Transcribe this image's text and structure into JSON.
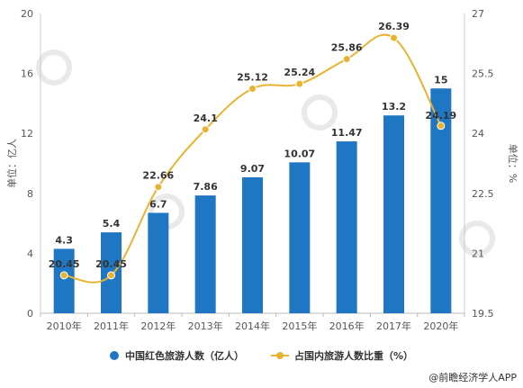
{
  "chart_data": {
    "type": "bar",
    "categories": [
      "2010年",
      "2011年",
      "2012年",
      "2013年",
      "2014年",
      "2015年",
      "2016年",
      "2017年",
      "2020年"
    ],
    "series": [
      {
        "name": "中国红色旅游人数（亿人）",
        "type": "bar",
        "axis": "left",
        "color": "#1f77c4",
        "values": [
          4.3,
          5.4,
          6.7,
          7.86,
          9.07,
          10.07,
          11.47,
          13.2,
          15
        ]
      },
      {
        "name": "占国内旅游人数比重（%）",
        "type": "line",
        "axis": "right",
        "color": "#e8b330",
        "values": [
          20.45,
          20.45,
          22.66,
          24.1,
          25.12,
          25.24,
          25.86,
          26.39,
          24.19
        ]
      }
    ],
    "ylabel": "单位：亿人",
    "y2label": "单位：%",
    "ylim": [
      0,
      20
    ],
    "yticks": [
      0,
      4,
      8,
      12,
      16,
      20
    ],
    "y2lim": [
      19.5,
      27
    ],
    "y2ticks": [
      19.5,
      21,
      22.5,
      24,
      25.5,
      27
    ],
    "legend_position": "bottom",
    "grid": false
  },
  "source_text": "@前瞻经济学人APP"
}
